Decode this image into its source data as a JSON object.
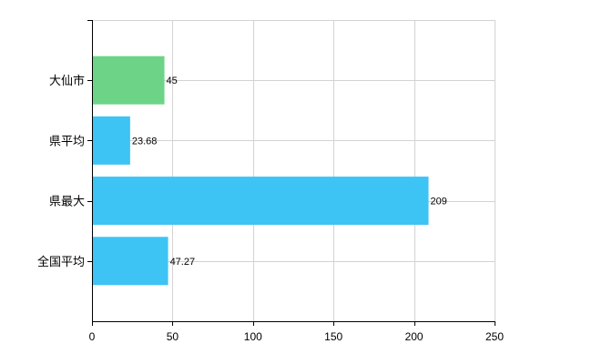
{
  "chart_data": {
    "type": "bar",
    "orientation": "horizontal",
    "categories": [
      "大仙市",
      "県平均",
      "県最大",
      "全国平均"
    ],
    "values": [
      45,
      23.68,
      209,
      47.27
    ],
    "data_labels": [
      "45",
      "23.68",
      "209",
      "47.27"
    ],
    "bar_colors": [
      "#6dd487",
      "#3ec3f5",
      "#3ec3f5",
      "#3ec3f5"
    ],
    "xlim": [
      0,
      250
    ],
    "xticks": [
      0,
      50,
      100,
      150,
      200,
      250
    ],
    "xtick_labels": [
      "0",
      "50",
      "100",
      "150",
      "200",
      "250"
    ],
    "grid": true,
    "legend": false,
    "title": "",
    "xlabel": "",
    "ylabel": ""
  }
}
